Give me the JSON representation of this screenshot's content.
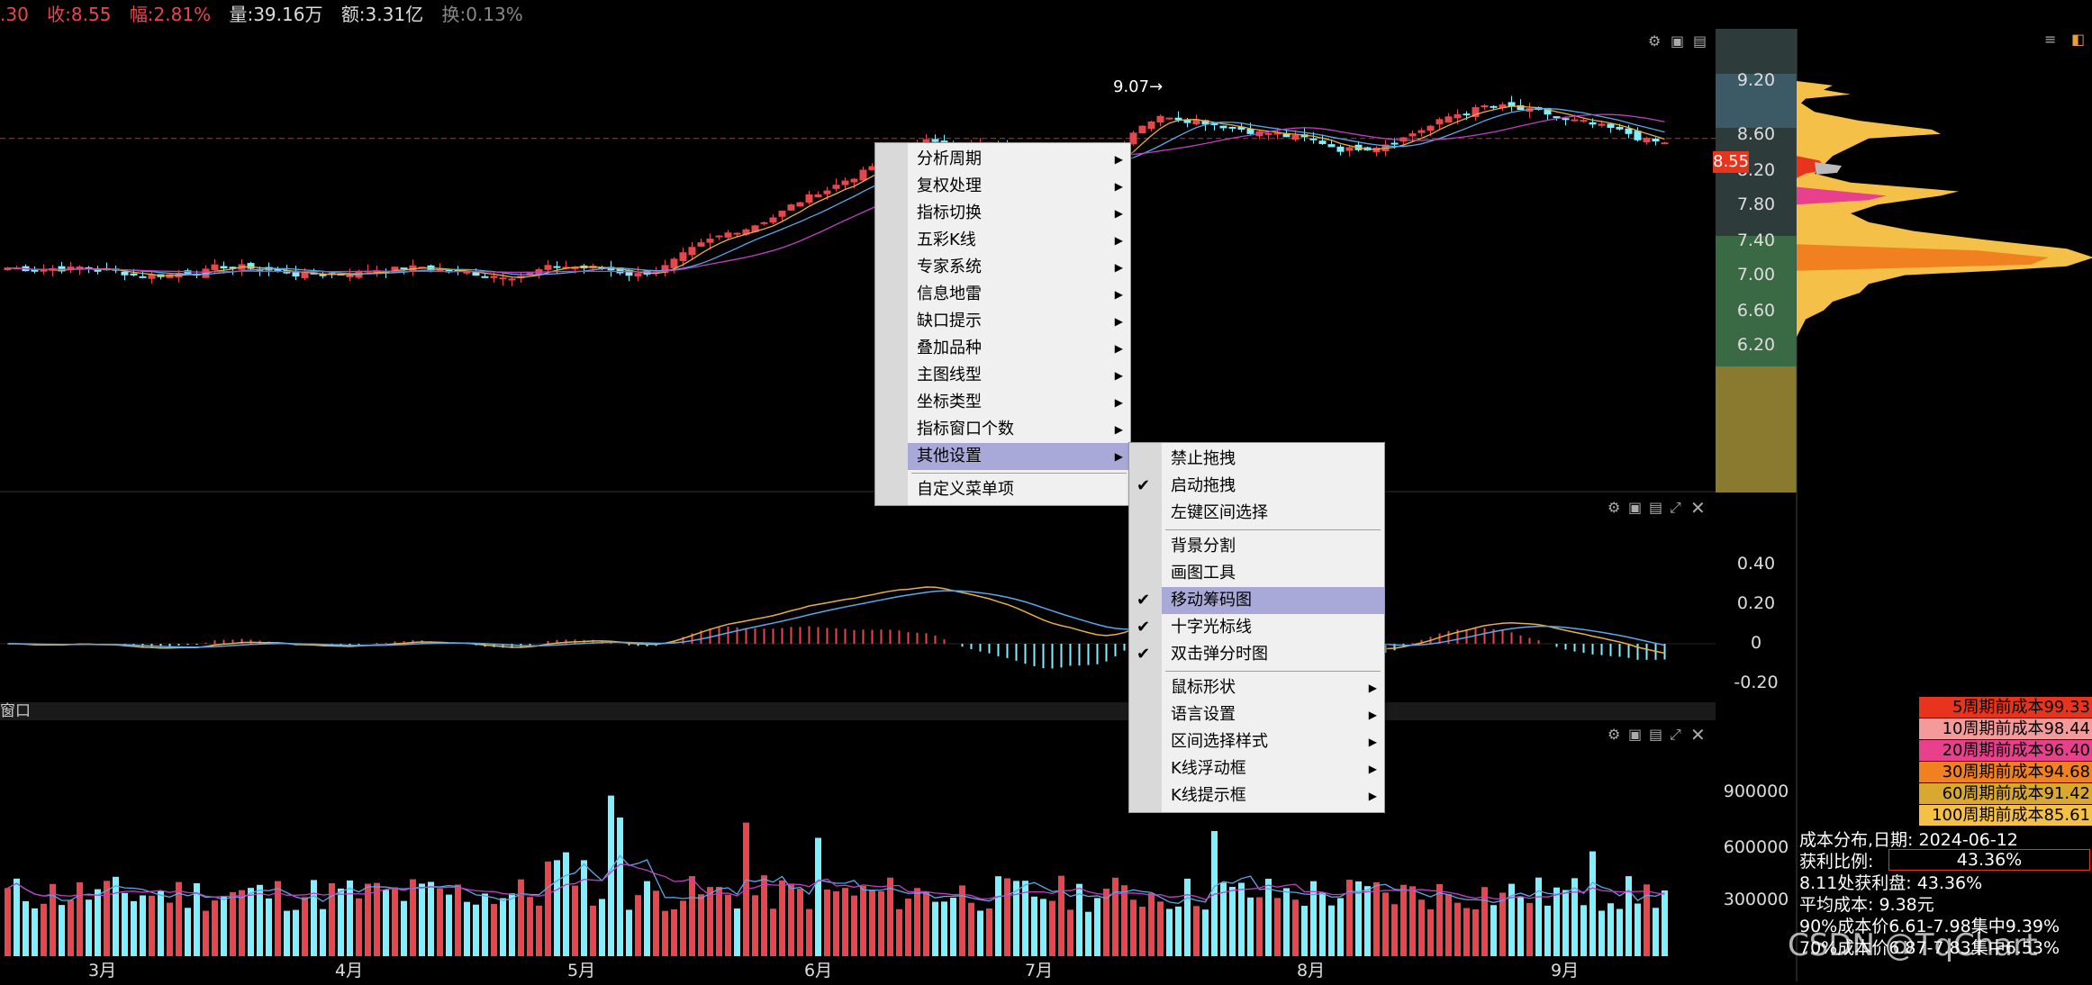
{
  "topbar": {
    "frag": ".30",
    "close": "收:8.55",
    "change": "幅:2.81%",
    "volume": "量:39.16万",
    "amount": "额:3.31亿",
    "turnover": "换:0.13%"
  },
  "main_chart": {
    "high_label": "9.07",
    "current_price": "8.55",
    "yticks": [
      "9.20",
      "8.60",
      "8.20",
      "7.80",
      "7.40",
      "7.00",
      "6.60",
      "6.20"
    ]
  },
  "macd": {
    "yticks": [
      "0.40",
      "0.20",
      "0",
      "-0.20"
    ]
  },
  "volume_panel": {
    "tab_label": "窗口",
    "yticks": [
      "900000",
      "600000",
      "300000"
    ]
  },
  "xaxis": {
    "months": [
      "3月",
      "4月",
      "5月",
      "6月",
      "7月",
      "8月",
      "9月"
    ]
  },
  "context_menu": {
    "items": [
      {
        "label": "分析周期",
        "sub": true
      },
      {
        "label": "复权处理",
        "sub": true
      },
      {
        "label": "指标切换",
        "sub": true
      },
      {
        "label": "五彩K线",
        "sub": true
      },
      {
        "label": "专家系统",
        "sub": true
      },
      {
        "label": "信息地雷",
        "sub": true
      },
      {
        "label": "缺口提示",
        "sub": true
      },
      {
        "label": "叠加品种",
        "sub": true
      },
      {
        "label": "主图线型",
        "sub": true
      },
      {
        "label": "坐标类型",
        "sub": true
      },
      {
        "label": "指标窗口个数",
        "sub": true
      },
      {
        "label": "其他设置",
        "sub": true,
        "highlight": true
      },
      {
        "label": "自定义菜单项",
        "sub": false
      }
    ]
  },
  "sub_menu": {
    "items": [
      {
        "label": "禁止拖拽",
        "check": false
      },
      {
        "label": "启动拖拽",
        "check": true
      },
      {
        "label": "左键区间选择",
        "check": false
      },
      {
        "label": "背景分割",
        "check": false
      },
      {
        "label": "画图工具",
        "check": false
      },
      {
        "label": "移动筹码图",
        "check": true,
        "highlight": true
      },
      {
        "label": "十字光标线",
        "check": true
      },
      {
        "label": "双击弹分时图",
        "check": true
      },
      {
        "label": "鼠标形状",
        "sub": true
      },
      {
        "label": "语言设置",
        "sub": true
      },
      {
        "label": "区间选择样式",
        "sub": true
      },
      {
        "label": "K线浮动框",
        "sub": true
      },
      {
        "label": "K线提示框",
        "sub": true
      }
    ]
  },
  "chip": {
    "cost_rows": [
      {
        "label": "5周期前成本99.33",
        "color": "#e8341c"
      },
      {
        "label": "10周期前成本98.44",
        "color": "#f59a9a"
      },
      {
        "label": "20周期前成本96.40",
        "color": "#e8408c"
      },
      {
        "label": "30周期前成本94.68",
        "color": "#f08020"
      },
      {
        "label": "60周期前成本91.42",
        "color": "#d8a830"
      },
      {
        "label": "100周期前成本85.61",
        "color": "#f4c048"
      }
    ],
    "date_line": "成本分布,日期:  2024-06-12",
    "profit_ratio_label": "获利比例:",
    "profit_ratio": "43.36%",
    "profit_at": "8.11处获利盘:  43.36%",
    "avg_cost": "平均成本:  9.38元",
    "cost90": "90%成本价6.61-7.98集中9.39%",
    "cost70": "70%成本价6.87-7.83集中6.53%",
    "watermark": "CSDN @TqChart"
  },
  "colors": {
    "up": "#e8464e",
    "down": "#7ff0ff",
    "ma5": "#e8b040",
    "ma10": "#5aa8e8",
    "ma20": "#c040c0"
  }
}
